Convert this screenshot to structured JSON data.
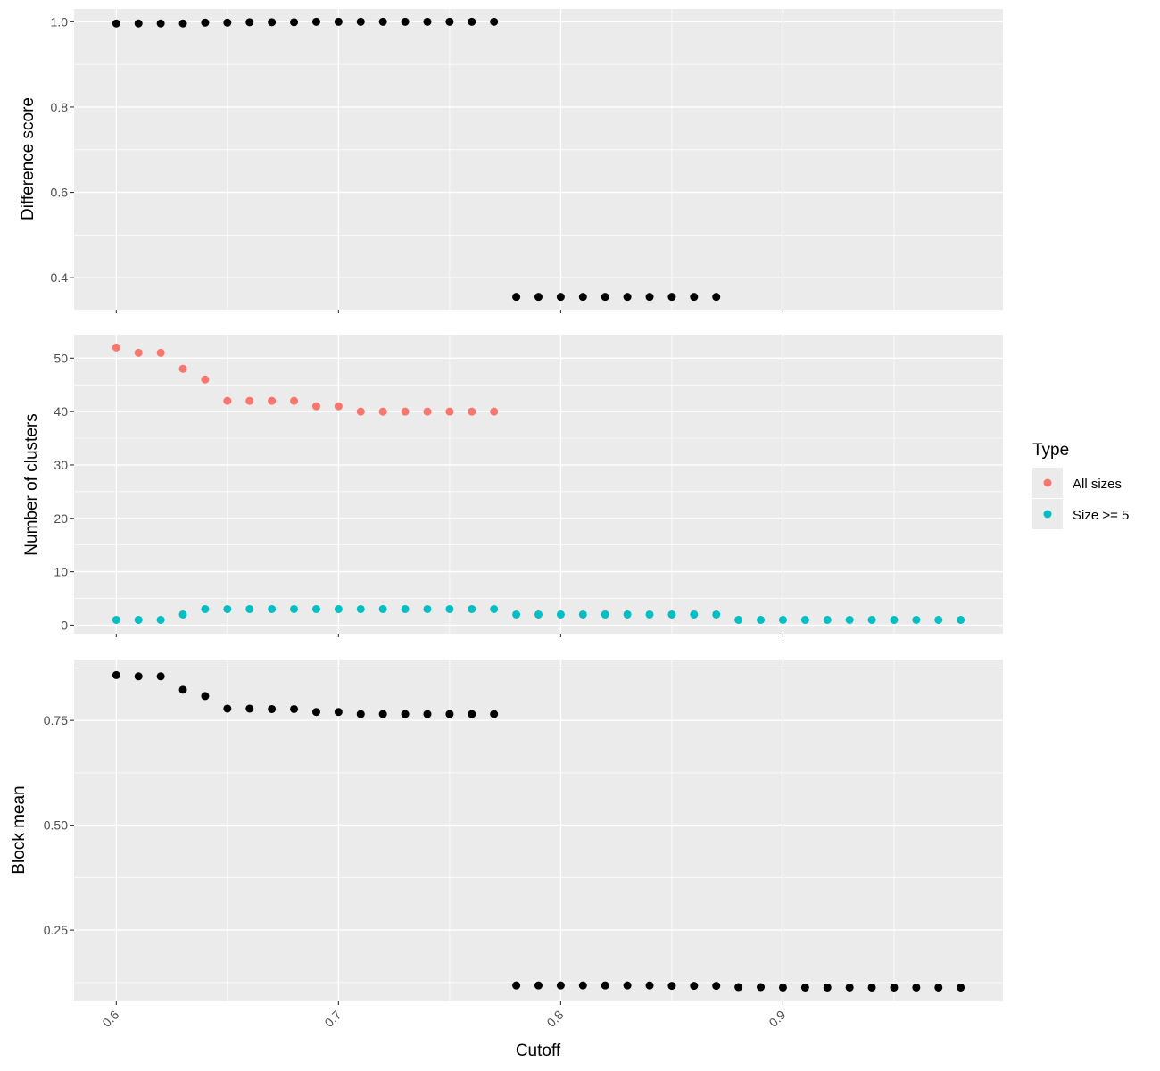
{
  "chart_data": {
    "type": "scatter",
    "xlabel": "Cutoff",
    "x_ticks": [
      "0.6",
      "0.7",
      "0.8",
      "0.9"
    ],
    "xlim": [
      0.581,
      0.999
    ],
    "grid": true,
    "legend": {
      "title": "Type",
      "position": "right",
      "entries": [
        {
          "label": "All sizes",
          "color": "#F8766D"
        },
        {
          "label": "Size >= 5",
          "color": "#00BFC4"
        }
      ]
    },
    "panels": [
      {
        "ylabel": "Difference score",
        "ylim": [
          0.325,
          1.03
        ],
        "y_ticks": [
          "0.4",
          "0.6",
          "0.8",
          "1.0"
        ],
        "series": [
          {
            "color": "#000000",
            "x": [
              0.6,
              0.61,
              0.62,
              0.63,
              0.64,
              0.65,
              0.66,
              0.67,
              0.68,
              0.69,
              0.7,
              0.71,
              0.72,
              0.73,
              0.74,
              0.75,
              0.76,
              0.77,
              0.78,
              0.79,
              0.8,
              0.81,
              0.82,
              0.83,
              0.84,
              0.85,
              0.86,
              0.87
            ],
            "y": [
              0.996,
              0.996,
              0.996,
              0.996,
              0.998,
              0.998,
              0.999,
              0.999,
              0.999,
              1.0,
              1.0,
              1.0,
              1.0,
              1.0,
              1.0,
              1.0,
              1.0,
              1.0,
              0.355,
              0.355,
              0.355,
              0.355,
              0.355,
              0.355,
              0.355,
              0.355,
              0.355,
              0.355
            ]
          }
        ]
      },
      {
        "ylabel": "Number of clusters",
        "ylim": [
          -1.6,
          54.4
        ],
        "y_ticks": [
          "0",
          "10",
          "20",
          "30",
          "40",
          "50"
        ],
        "series": [
          {
            "name": "All sizes",
            "color": "#F8766D",
            "x": [
              0.6,
              0.61,
              0.62,
              0.63,
              0.64,
              0.65,
              0.66,
              0.67,
              0.68,
              0.69,
              0.7,
              0.71,
              0.72,
              0.73,
              0.74,
              0.75,
              0.76,
              0.77
            ],
            "y": [
              52,
              51,
              51,
              48,
              46,
              42,
              42,
              42,
              42,
              41,
              41,
              40,
              40,
              40,
              40,
              40,
              40,
              40
            ]
          },
          {
            "name": "Size >= 5",
            "color": "#00BFC4",
            "x": [
              0.6,
              0.61,
              0.62,
              0.63,
              0.64,
              0.65,
              0.66,
              0.67,
              0.68,
              0.69,
              0.7,
              0.71,
              0.72,
              0.73,
              0.74,
              0.75,
              0.76,
              0.77,
              0.78,
              0.79,
              0.8,
              0.81,
              0.82,
              0.83,
              0.84,
              0.85,
              0.86,
              0.87,
              0.88,
              0.89,
              0.9,
              0.91,
              0.92,
              0.93,
              0.94,
              0.95,
              0.96,
              0.97,
              0.98
            ],
            "y": [
              1,
              1,
              1,
              2,
              3,
              3,
              3,
              3,
              3,
              3,
              3,
              3,
              3,
              3,
              3,
              3,
              3,
              3,
              2,
              2,
              2,
              2,
              2,
              2,
              2,
              2,
              2,
              2,
              1,
              1,
              1,
              1,
              1,
              1,
              1,
              1,
              1,
              1,
              1
            ]
          }
        ]
      },
      {
        "ylabel": "Block mean",
        "ylim": [
          0.08,
          0.895
        ],
        "y_ticks": [
          "0.25",
          "0.50",
          "0.75"
        ],
        "series": [
          {
            "color": "#000000",
            "x": [
              0.6,
              0.61,
              0.62,
              0.63,
              0.64,
              0.65,
              0.66,
              0.67,
              0.68,
              0.69,
              0.7,
              0.71,
              0.72,
              0.73,
              0.74,
              0.75,
              0.76,
              0.77,
              0.78,
              0.79,
              0.8,
              0.81,
              0.82,
              0.83,
              0.84,
              0.85,
              0.86,
              0.87,
              0.88,
              0.89,
              0.9,
              0.91,
              0.92,
              0.93,
              0.94,
              0.95,
              0.96,
              0.97,
              0.98
            ],
            "y": [
              0.858,
              0.855,
              0.855,
              0.823,
              0.808,
              0.778,
              0.778,
              0.777,
              0.777,
              0.77,
              0.77,
              0.765,
              0.765,
              0.765,
              0.765,
              0.765,
              0.765,
              0.765,
              0.118,
              0.118,
              0.118,
              0.118,
              0.118,
              0.118,
              0.118,
              0.117,
              0.117,
              0.117,
              0.114,
              0.114,
              0.113,
              0.113,
              0.113,
              0.113,
              0.113,
              0.113,
              0.113,
              0.113,
              0.113
            ]
          }
        ]
      }
    ]
  }
}
